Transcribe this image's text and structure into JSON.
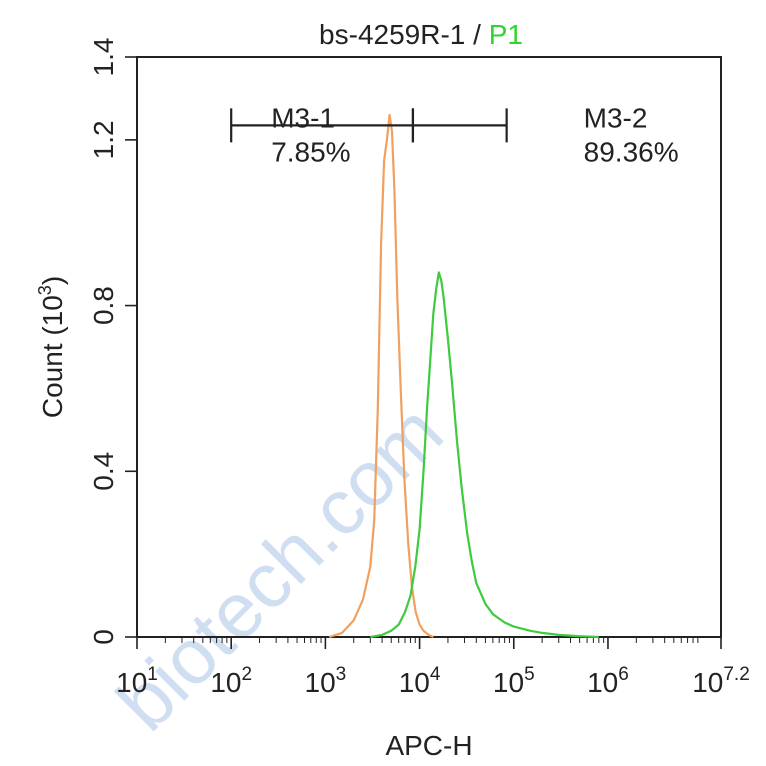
{
  "chart_data": {
    "type": "line",
    "title_prefix": "bs-4259R-1 / ",
    "title_highlight": "P1",
    "title_highlight_color": "#2fd52f",
    "xlabel": "APC-H",
    "ylabel": "Count  (10",
    "ylabel_exp": "3",
    "ylabel_suffix": ")",
    "x_scale": "log10",
    "xlim": [
      10,
      15848931.9
    ],
    "ylim": [
      0,
      1.4
    ],
    "y_ticks": [
      "0",
      "0.4",
      "0.8",
      "1.2",
      "1.4"
    ],
    "y_tick_values": [
      0,
      0.4,
      0.8,
      1.2,
      1.4
    ],
    "x_ticks": [
      {
        "base": "10",
        "exp": "1",
        "value": 10
      },
      {
        "base": "10",
        "exp": "2",
        "value": 100
      },
      {
        "base": "10",
        "exp": "3",
        "value": 1000
      },
      {
        "base": "10",
        "exp": "4",
        "value": 10000
      },
      {
        "base": "10",
        "exp": "5",
        "value": 100000
      },
      {
        "base": "10",
        "exp": "6",
        "value": 1000000
      },
      {
        "base": "10",
        "exp": "7.2",
        "value": 15848931.9
      }
    ],
    "series": [
      {
        "color": "#f0a060",
        "x": [
          1100,
          1500,
          2000,
          2500,
          3000,
          3300,
          3600,
          3900,
          4200,
          4500,
          4800,
          5100,
          5400,
          5800,
          6300,
          6900,
          7600,
          8300,
          9100,
          10000,
          11000,
          12500,
          14000
        ],
        "y": [
          0,
          0.01,
          0.04,
          0.09,
          0.17,
          0.28,
          0.55,
          0.95,
          1.15,
          1.2,
          1.26,
          1.22,
          1.08,
          0.82,
          0.6,
          0.38,
          0.22,
          0.12,
          0.06,
          0.03,
          0.015,
          0.005,
          0
        ]
      },
      {
        "color": "#3ecb3e",
        "x": [
          3000,
          4000,
          5000,
          6000,
          7000,
          8000,
          9000,
          10000,
          11000,
          12000,
          13000,
          14000,
          15000,
          16000,
          17000,
          18000,
          20000,
          22000,
          25000,
          28000,
          32000,
          36000,
          40000,
          50000,
          60000,
          80000,
          100000,
          150000,
          200000,
          300000,
          500000,
          800000
        ],
        "y": [
          0,
          0.005,
          0.015,
          0.03,
          0.06,
          0.1,
          0.17,
          0.26,
          0.4,
          0.55,
          0.67,
          0.78,
          0.84,
          0.88,
          0.86,
          0.82,
          0.72,
          0.62,
          0.47,
          0.36,
          0.25,
          0.18,
          0.13,
          0.08,
          0.055,
          0.035,
          0.025,
          0.015,
          0.01,
          0.005,
          0.002,
          0
        ]
      }
    ],
    "gates": [
      {
        "name": "M3-1",
        "percent": "7.85%",
        "x_start": 100,
        "x_end": 8500,
        "y": 1.235,
        "label_pos": "inside-left"
      },
      {
        "name": "M3-2",
        "percent": "89.36%",
        "x_start": 8500,
        "x_end": 84000,
        "y": 1.235,
        "label_pos": "right"
      }
    ],
    "grid": false,
    "legend": "none"
  },
  "watermark": "biotech.com"
}
